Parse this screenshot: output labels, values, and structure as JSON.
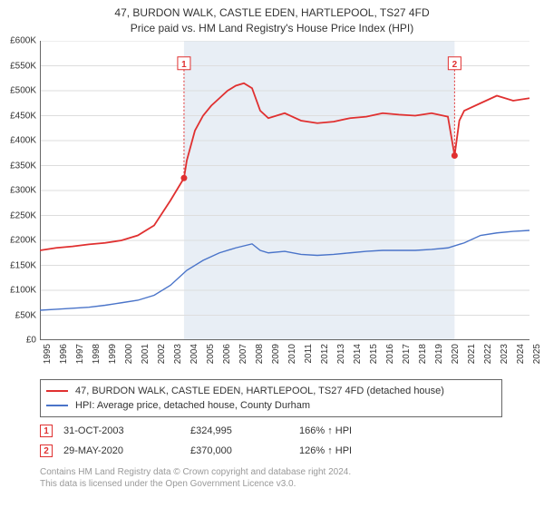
{
  "title_line1": "47, BURDON WALK, CASTLE EDEN, HARTLEPOOL, TS27 4FD",
  "title_line2": "Price paid vs. HM Land Registry's House Price Index (HPI)",
  "chart": {
    "type": "line",
    "background_color": "#ffffff",
    "shaded_color": "#e8eef5",
    "gridline_color": "#dddddd",
    "axis_color": "#666666",
    "dotted_marker_color": "#e03030",
    "yaxis": {
      "min": 0,
      "max": 600000,
      "step": 50000,
      "labels": [
        "£0",
        "£50K",
        "£100K",
        "£150K",
        "£200K",
        "£250K",
        "£300K",
        "£350K",
        "£400K",
        "£450K",
        "£500K",
        "£550K",
        "£600K"
      ]
    },
    "xaxis": {
      "min": 1995,
      "max": 2025,
      "labels": [
        "1995",
        "1996",
        "1997",
        "1998",
        "1999",
        "2000",
        "2001",
        "2002",
        "2003",
        "2004",
        "2005",
        "2006",
        "2007",
        "2008",
        "2009",
        "2010",
        "2011",
        "2012",
        "2013",
        "2014",
        "2015",
        "2016",
        "2017",
        "2018",
        "2019",
        "2020",
        "2021",
        "2022",
        "2023",
        "2024",
        "2025"
      ]
    },
    "shaded_x_start": 2003.83,
    "shaded_x_end": 2020.41,
    "series": [
      {
        "name": "price_paid",
        "color": "#e03030",
        "stroke_width": 1.8,
        "points": [
          [
            1995,
            180000
          ],
          [
            1996,
            185000
          ],
          [
            1997,
            188000
          ],
          [
            1998,
            192000
          ],
          [
            1999,
            195000
          ],
          [
            2000,
            200000
          ],
          [
            2001,
            210000
          ],
          [
            2002,
            230000
          ],
          [
            2003,
            280000
          ],
          [
            2003.83,
            324995
          ],
          [
            2004,
            360000
          ],
          [
            2004.5,
            420000
          ],
          [
            2005,
            450000
          ],
          [
            2005.5,
            470000
          ],
          [
            2006,
            485000
          ],
          [
            2006.5,
            500000
          ],
          [
            2007,
            510000
          ],
          [
            2007.5,
            515000
          ],
          [
            2008,
            505000
          ],
          [
            2008.5,
            460000
          ],
          [
            2009,
            445000
          ],
          [
            2009.5,
            450000
          ],
          [
            2010,
            455000
          ],
          [
            2011,
            440000
          ],
          [
            2012,
            435000
          ],
          [
            2013,
            438000
          ],
          [
            2014,
            445000
          ],
          [
            2015,
            448000
          ],
          [
            2016,
            455000
          ],
          [
            2017,
            452000
          ],
          [
            2018,
            450000
          ],
          [
            2019,
            455000
          ],
          [
            2020,
            448000
          ],
          [
            2020.41,
            370000
          ],
          [
            2020.7,
            440000
          ],
          [
            2021,
            460000
          ],
          [
            2022,
            475000
          ],
          [
            2023,
            490000
          ],
          [
            2024,
            480000
          ],
          [
            2025,
            485000
          ]
        ]
      },
      {
        "name": "hpi",
        "color": "#4a74c9",
        "stroke_width": 1.4,
        "points": [
          [
            1995,
            60000
          ],
          [
            1996,
            62000
          ],
          [
            1997,
            64000
          ],
          [
            1998,
            66000
          ],
          [
            1999,
            70000
          ],
          [
            2000,
            75000
          ],
          [
            2001,
            80000
          ],
          [
            2002,
            90000
          ],
          [
            2003,
            110000
          ],
          [
            2004,
            140000
          ],
          [
            2005,
            160000
          ],
          [
            2006,
            175000
          ],
          [
            2007,
            185000
          ],
          [
            2008,
            193000
          ],
          [
            2008.5,
            180000
          ],
          [
            2009,
            175000
          ],
          [
            2010,
            178000
          ],
          [
            2011,
            172000
          ],
          [
            2012,
            170000
          ],
          [
            2013,
            172000
          ],
          [
            2014,
            175000
          ],
          [
            2015,
            178000
          ],
          [
            2016,
            180000
          ],
          [
            2017,
            180000
          ],
          [
            2018,
            180000
          ],
          [
            2019,
            182000
          ],
          [
            2020,
            185000
          ],
          [
            2021,
            195000
          ],
          [
            2022,
            210000
          ],
          [
            2023,
            215000
          ],
          [
            2024,
            218000
          ],
          [
            2025,
            220000
          ]
        ]
      }
    ],
    "markers": [
      {
        "id": "1",
        "x": 2003.83,
        "y": 324995,
        "box_y": 555000
      },
      {
        "id": "2",
        "x": 2020.41,
        "y": 370000,
        "box_y": 555000
      }
    ]
  },
  "legend": {
    "rows": [
      {
        "color": "#e03030",
        "label": "47, BURDON WALK, CASTLE EDEN, HARTLEPOOL, TS27 4FD (detached house)"
      },
      {
        "color": "#4a74c9",
        "label": "HPI: Average price, detached house, County Durham"
      }
    ]
  },
  "transactions": [
    {
      "id": "1",
      "color": "#e03030",
      "date": "31-OCT-2003",
      "price": "£324,995",
      "pct": "166% ↑ HPI"
    },
    {
      "id": "2",
      "color": "#e03030",
      "date": "29-MAY-2020",
      "price": "£370,000",
      "pct": "126% ↑ HPI"
    }
  ],
  "footnote_line1": "Contains HM Land Registry data © Crown copyright and database right 2024.",
  "footnote_line2": "This data is licensed under the Open Government Licence v3.0."
}
